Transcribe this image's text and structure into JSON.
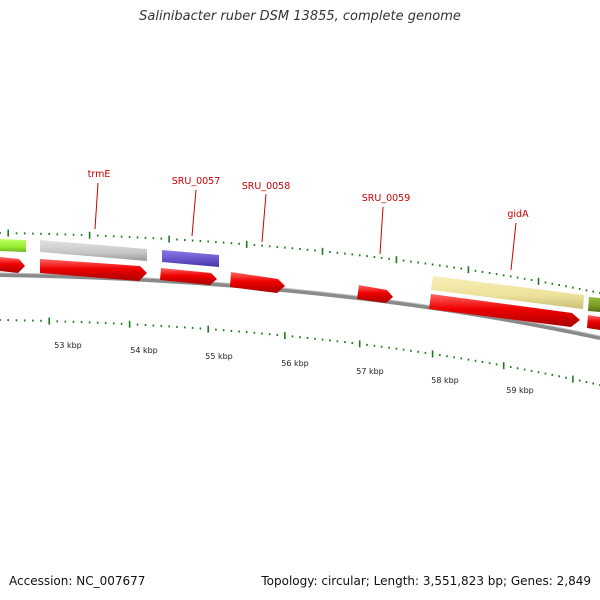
{
  "title": "Salinibacter ruber DSM 13855, complete genome",
  "footer": {
    "accession": "Accession: NC_007677",
    "summary": "Topology: circular; Length: 3,551,823 bp; Genes: 2,849"
  },
  "genes": [
    {
      "label": "trmE",
      "strand": "+"
    },
    {
      "label": "SRU_0057",
      "strand": "+"
    },
    {
      "label": "SRU_0058",
      "strand": "+"
    },
    {
      "label": "SRU_0059",
      "strand": "+"
    },
    {
      "label": "gidA",
      "strand": "+"
    }
  ],
  "scale_labels": [
    "53 kbp",
    "54 kbp",
    "55 kbp",
    "56 kbp",
    "57 kbp",
    "58 kbp",
    "59 kbp"
  ],
  "colors": {
    "cds": "#ee0000",
    "label": "#cc0000",
    "tick": "#1e7a1e",
    "backbone": "#888888",
    "feature_grey": "#c8c8c8",
    "feature_purple": "#6655cc",
    "feature_yellow": "#efe6a0",
    "feature_lime": "#99ee33",
    "feature_olive": "#779922"
  }
}
